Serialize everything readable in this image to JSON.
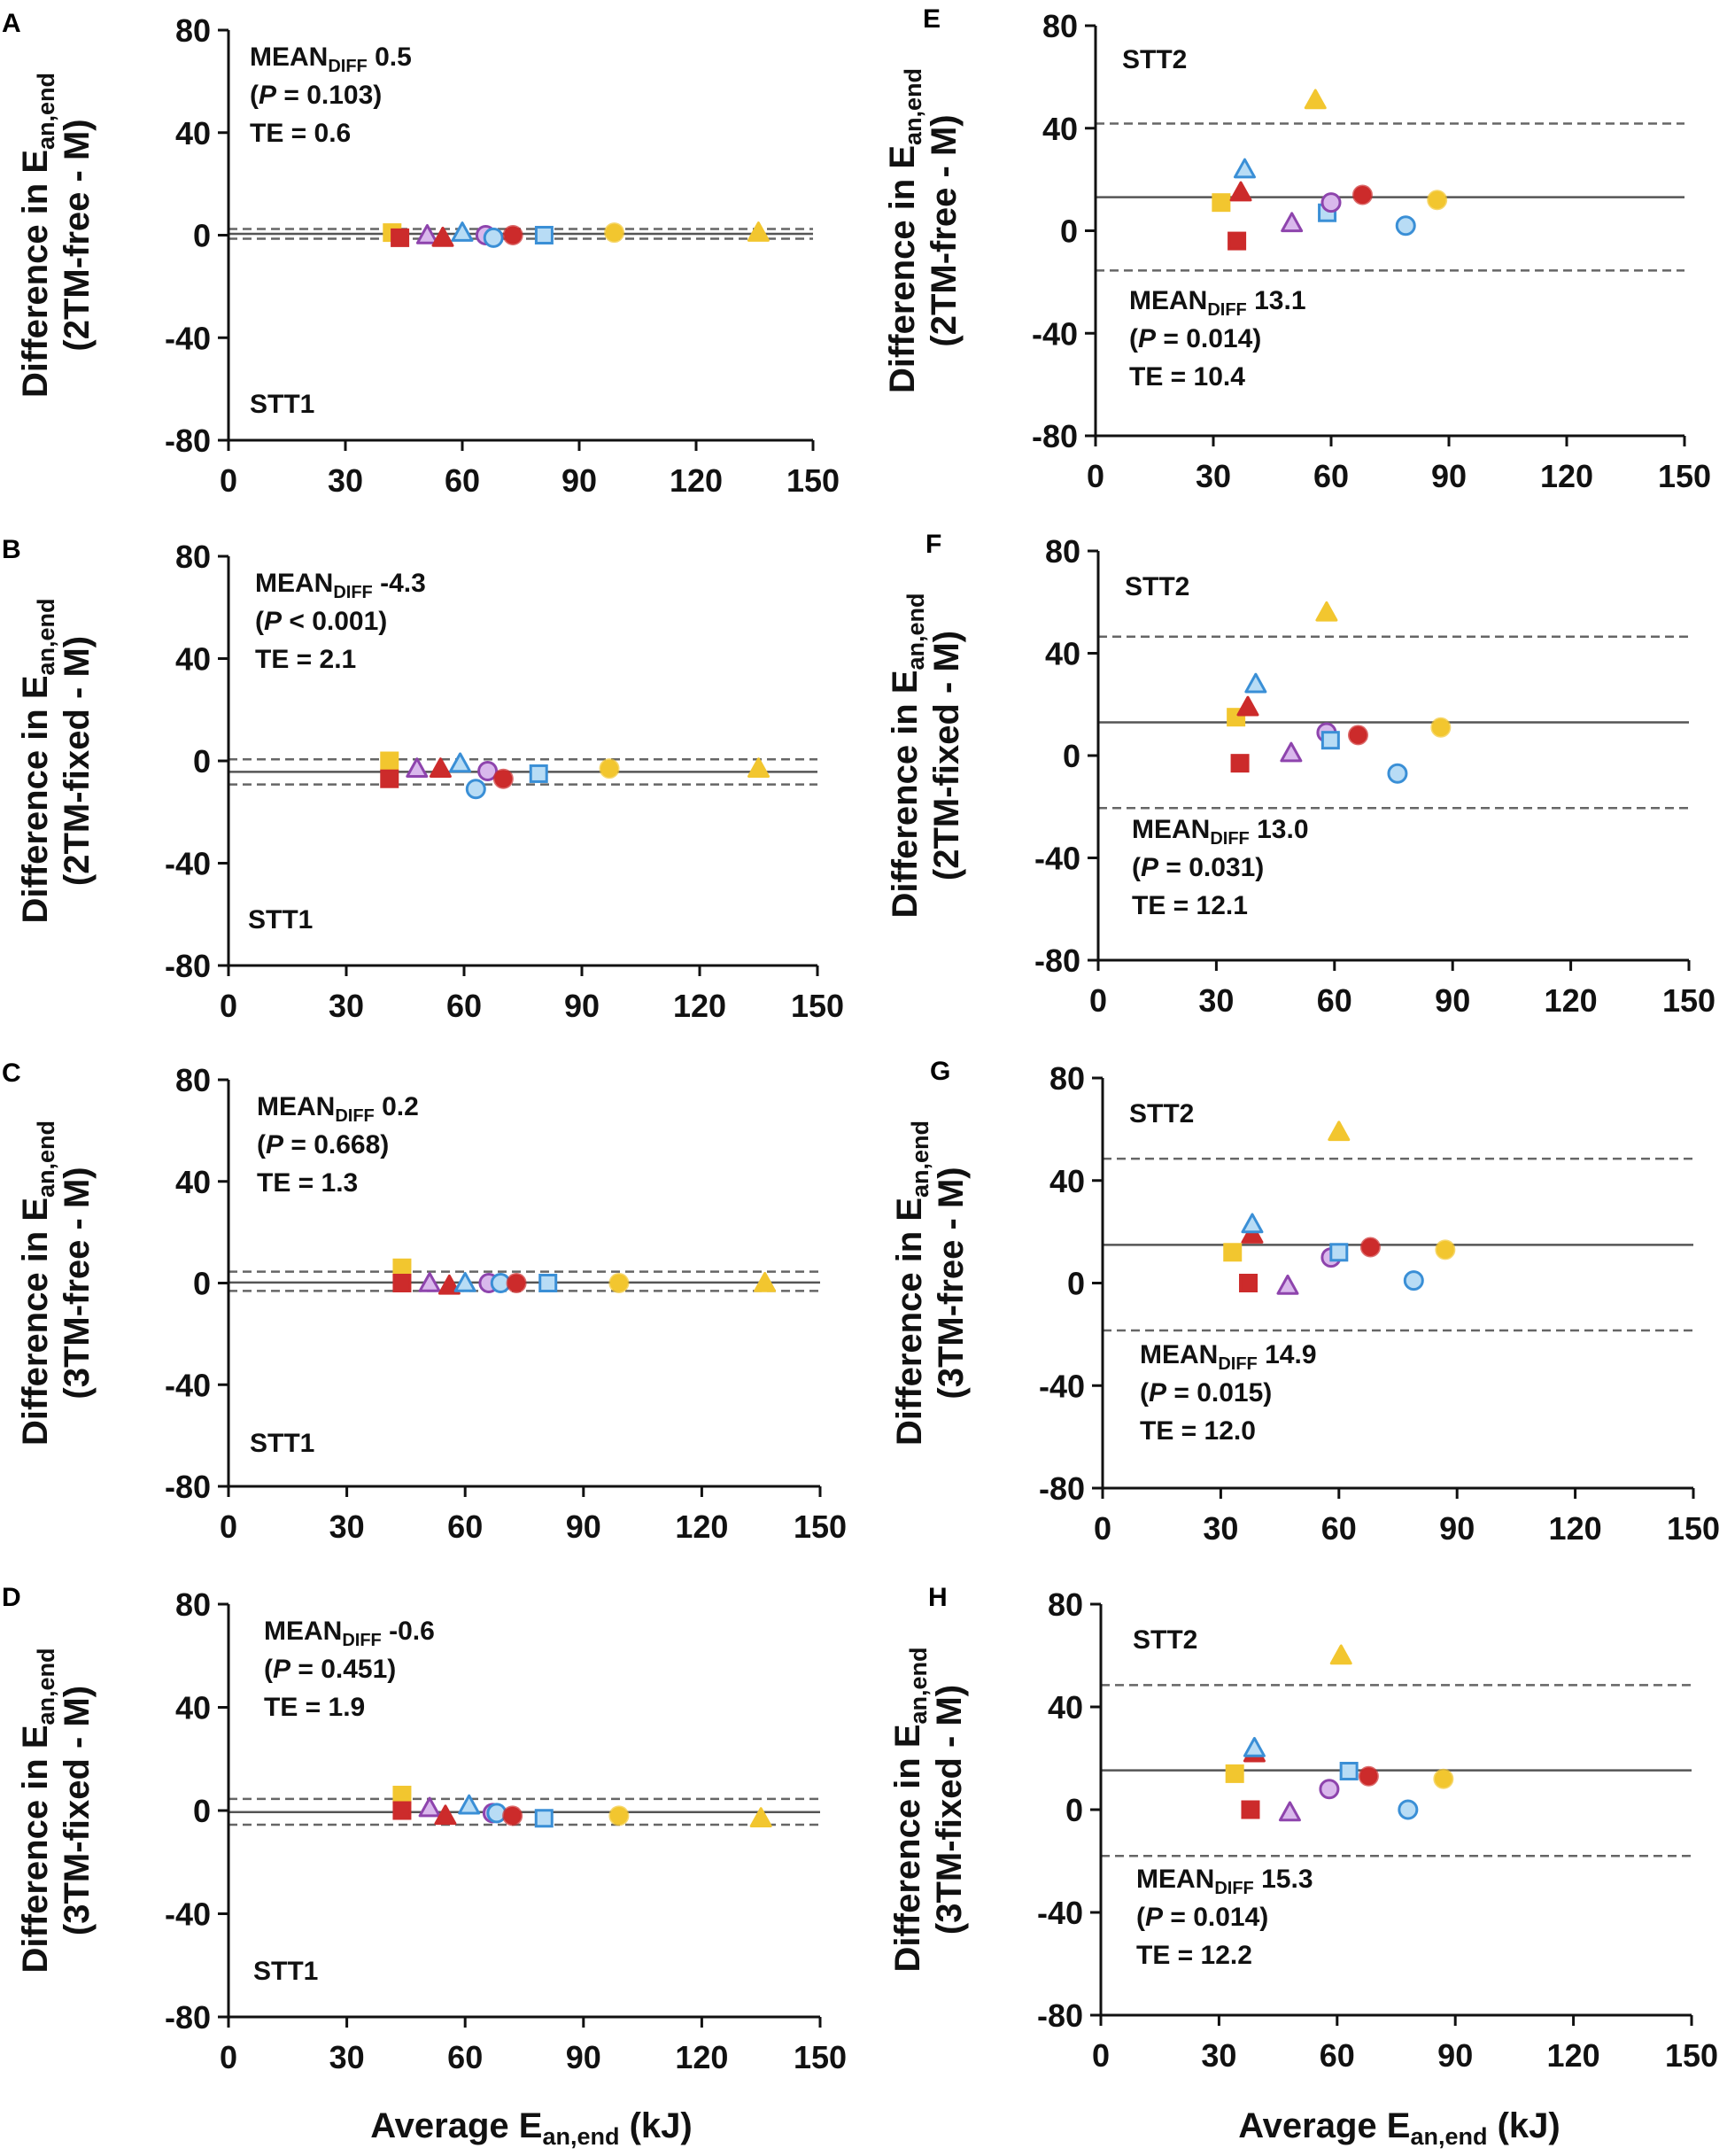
{
  "colors": {
    "yellow": "#f2c62f",
    "red": "#cc2b2b",
    "purple": "#8e44ad",
    "blue": "#3a8fd6",
    "axis": "#111111",
    "mean_line": "#555555",
    "loa_line": "#666666"
  },
  "x_axis_label": {
    "main": "Average E",
    "sub": "an,end",
    "unit": " (kJ)"
  },
  "chart_data": [
    {
      "type": "scatter",
      "panel": "A",
      "session": "STT1",
      "ylabel_line1": {
        "main": "Difference in E",
        "sub": "an,end"
      },
      "ylabel_line2": "(2TM-free - M)",
      "annot": {
        "mean_label": "MEAN",
        "mean_sub": "DIFF",
        "mean_value": " 0.5",
        "p_open": "(",
        "p_italic": "P",
        "p_rest": " = 0.103)",
        "te": "TE = 0.6"
      },
      "xlim": [
        0,
        150
      ],
      "ylim": [
        -80,
        80
      ],
      "xticks": [
        "0",
        "30",
        "60",
        "90",
        "120",
        "150"
      ],
      "yticks": [
        "80",
        "40",
        "0",
        "-40",
        "-80"
      ],
      "mean": 0.5,
      "loa": [
        2.4,
        -1.4
      ],
      "points": [
        {
          "x": 42,
          "y": 1,
          "shape": "square",
          "color": "yellow",
          "fill": "solid"
        },
        {
          "x": 44,
          "y": -1,
          "shape": "square",
          "color": "red",
          "fill": "solid"
        },
        {
          "x": 51,
          "y": 0,
          "shape": "triangle",
          "color": "purple",
          "fill": "light"
        },
        {
          "x": 55,
          "y": -1,
          "shape": "triangle",
          "color": "red",
          "fill": "solid"
        },
        {
          "x": 60,
          "y": 1,
          "shape": "triangle",
          "color": "blue",
          "fill": "light"
        },
        {
          "x": 66,
          "y": 0,
          "shape": "circle",
          "color": "purple",
          "fill": "light"
        },
        {
          "x": 68,
          "y": -1,
          "shape": "circle",
          "color": "blue",
          "fill": "light"
        },
        {
          "x": 73,
          "y": 0,
          "shape": "circle",
          "color": "red",
          "fill": "solid"
        },
        {
          "x": 81,
          "y": 0,
          "shape": "square",
          "color": "blue",
          "fill": "light"
        },
        {
          "x": 99,
          "y": 1,
          "shape": "circle",
          "color": "yellow",
          "fill": "solid"
        },
        {
          "x": 136,
          "y": 1,
          "shape": "triangle",
          "color": "yellow",
          "fill": "solid"
        }
      ]
    },
    {
      "type": "scatter",
      "panel": "B",
      "session": "STT1",
      "ylabel_line1": {
        "main": "Difference in E",
        "sub": "an,end"
      },
      "ylabel_line2": "(2TM-fixed - M)",
      "annot": {
        "mean_label": "MEAN",
        "mean_sub": "DIFF",
        "mean_value": " -4.3",
        "p_open": "(",
        "p_italic": "P",
        "p_rest": " < 0.001)",
        "te": "TE = 2.1"
      },
      "xlim": [
        0,
        150
      ],
      "ylim": [
        -80,
        80
      ],
      "xticks": [
        "0",
        "30",
        "60",
        "90",
        "120",
        "150"
      ],
      "yticks": [
        "80",
        "40",
        "0",
        "-40",
        "-80"
      ],
      "mean": -4.3,
      "loa": [
        0.6,
        -9.2
      ],
      "points": [
        {
          "x": 41,
          "y": 0,
          "shape": "square",
          "color": "yellow",
          "fill": "solid"
        },
        {
          "x": 41,
          "y": -7,
          "shape": "square",
          "color": "red",
          "fill": "solid"
        },
        {
          "x": 48,
          "y": -3,
          "shape": "triangle",
          "color": "purple",
          "fill": "light"
        },
        {
          "x": 54,
          "y": -3,
          "shape": "triangle",
          "color": "red",
          "fill": "solid"
        },
        {
          "x": 59,
          "y": -1,
          "shape": "triangle",
          "color": "blue",
          "fill": "light"
        },
        {
          "x": 63,
          "y": -11,
          "shape": "circle",
          "color": "blue",
          "fill": "light"
        },
        {
          "x": 66,
          "y": -4,
          "shape": "circle",
          "color": "purple",
          "fill": "light"
        },
        {
          "x": 70,
          "y": -7,
          "shape": "circle",
          "color": "red",
          "fill": "solid"
        },
        {
          "x": 79,
          "y": -5,
          "shape": "square",
          "color": "blue",
          "fill": "light"
        },
        {
          "x": 97,
          "y": -3,
          "shape": "circle",
          "color": "yellow",
          "fill": "solid"
        },
        {
          "x": 135,
          "y": -3,
          "shape": "triangle",
          "color": "yellow",
          "fill": "solid"
        }
      ]
    },
    {
      "type": "scatter",
      "panel": "C",
      "session": "STT1",
      "ylabel_line1": {
        "main": "Difference in E",
        "sub": "an,end"
      },
      "ylabel_line2": "(3TM-free - M)",
      "annot": {
        "mean_label": "MEAN",
        "mean_sub": "DIFF",
        "mean_value": " 0.2",
        "p_open": "(",
        "p_italic": "P",
        "p_rest": " = 0.668)",
        "te": "TE = 1.3"
      },
      "xlim": [
        0,
        150
      ],
      "ylim": [
        -80,
        80
      ],
      "xticks": [
        "0",
        "30",
        "60",
        "90",
        "120",
        "150"
      ],
      "yticks": [
        "80",
        "40",
        "0",
        "-40",
        "-80"
      ],
      "mean": 0.2,
      "loa": [
        4.5,
        -3.1
      ],
      "points": [
        {
          "x": 44,
          "y": 6,
          "shape": "square",
          "color": "yellow",
          "fill": "solid"
        },
        {
          "x": 44,
          "y": 0,
          "shape": "square",
          "color": "red",
          "fill": "solid"
        },
        {
          "x": 51,
          "y": 0,
          "shape": "triangle",
          "color": "purple",
          "fill": "light"
        },
        {
          "x": 56,
          "y": -1,
          "shape": "triangle",
          "color": "red",
          "fill": "solid"
        },
        {
          "x": 60,
          "y": 0,
          "shape": "triangle",
          "color": "blue",
          "fill": "light"
        },
        {
          "x": 66,
          "y": 0,
          "shape": "circle",
          "color": "purple",
          "fill": "light"
        },
        {
          "x": 69,
          "y": 0,
          "shape": "circle",
          "color": "blue",
          "fill": "light"
        },
        {
          "x": 73,
          "y": 0,
          "shape": "circle",
          "color": "red",
          "fill": "solid"
        },
        {
          "x": 81,
          "y": 0,
          "shape": "square",
          "color": "blue",
          "fill": "light"
        },
        {
          "x": 99,
          "y": 0,
          "shape": "circle",
          "color": "yellow",
          "fill": "solid"
        },
        {
          "x": 136,
          "y": 0,
          "shape": "triangle",
          "color": "yellow",
          "fill": "solid"
        }
      ]
    },
    {
      "type": "scatter",
      "panel": "D",
      "session": "STT1",
      "ylabel_line1": {
        "main": "Difference in E",
        "sub": "an,end"
      },
      "ylabel_line2": "(3TM-fixed - M)",
      "annot": {
        "mean_label": "MEAN",
        "mean_sub": "DIFF",
        "mean_value": " -0.6",
        "p_open": "(",
        "p_italic": "P",
        "p_rest": " = 0.451)",
        "te": "TE = 1.9"
      },
      "xlim": [
        0,
        150
      ],
      "ylim": [
        -80,
        80
      ],
      "xticks": [
        "0",
        "30",
        "60",
        "90",
        "120",
        "150"
      ],
      "yticks": [
        "80",
        "40",
        "0",
        "-40",
        "-80"
      ],
      "mean": -0.6,
      "loa": [
        4.5,
        -5.5
      ],
      "points": [
        {
          "x": 44,
          "y": 6,
          "shape": "square",
          "color": "yellow",
          "fill": "solid"
        },
        {
          "x": 44,
          "y": 0,
          "shape": "square",
          "color": "red",
          "fill": "solid"
        },
        {
          "x": 51,
          "y": 1,
          "shape": "triangle",
          "color": "purple",
          "fill": "light"
        },
        {
          "x": 55,
          "y": -2,
          "shape": "triangle",
          "color": "red",
          "fill": "solid"
        },
        {
          "x": 61,
          "y": 2,
          "shape": "triangle",
          "color": "blue",
          "fill": "light"
        },
        {
          "x": 67,
          "y": -1,
          "shape": "circle",
          "color": "purple",
          "fill": "light"
        },
        {
          "x": 68,
          "y": -1,
          "shape": "circle",
          "color": "blue",
          "fill": "light"
        },
        {
          "x": 72,
          "y": -2,
          "shape": "circle",
          "color": "red",
          "fill": "solid"
        },
        {
          "x": 80,
          "y": -3,
          "shape": "square",
          "color": "blue",
          "fill": "light"
        },
        {
          "x": 99,
          "y": -2,
          "shape": "circle",
          "color": "yellow",
          "fill": "solid"
        },
        {
          "x": 135,
          "y": -3,
          "shape": "triangle",
          "color": "yellow",
          "fill": "solid"
        }
      ]
    },
    {
      "type": "scatter",
      "panel": "E",
      "session": "STT2",
      "ylabel_line1": {
        "main": "Difference in E",
        "sub": "an,end"
      },
      "ylabel_line2": "(2TM-free - M)",
      "annot": {
        "mean_label": "MEAN",
        "mean_sub": "DIFF",
        "mean_value": " 13.1",
        "p_open": "(",
        "p_italic": "P",
        "p_rest": " = 0.014)",
        "te": "TE = 10.4"
      },
      "xlim": [
        0,
        150
      ],
      "ylim": [
        -80,
        80
      ],
      "xticks": [
        "0",
        "30",
        "60",
        "90",
        "120",
        "150"
      ],
      "yticks": [
        "80",
        "40",
        "0",
        "-40",
        "-80"
      ],
      "mean": 13.1,
      "loa": [
        41.8,
        -15.5
      ],
      "points": [
        {
          "x": 32,
          "y": 11,
          "shape": "square",
          "color": "yellow",
          "fill": "solid"
        },
        {
          "x": 36,
          "y": -4,
          "shape": "square",
          "color": "red",
          "fill": "solid"
        },
        {
          "x": 37,
          "y": 15,
          "shape": "triangle",
          "color": "red",
          "fill": "solid"
        },
        {
          "x": 38,
          "y": 24,
          "shape": "triangle",
          "color": "blue",
          "fill": "light"
        },
        {
          "x": 50,
          "y": 3,
          "shape": "triangle",
          "color": "purple",
          "fill": "light"
        },
        {
          "x": 56,
          "y": 51,
          "shape": "triangle",
          "color": "yellow",
          "fill": "solid"
        },
        {
          "x": 59,
          "y": 7,
          "shape": "square",
          "color": "blue",
          "fill": "light"
        },
        {
          "x": 60,
          "y": 11,
          "shape": "circle",
          "color": "purple",
          "fill": "light"
        },
        {
          "x": 68,
          "y": 14,
          "shape": "circle",
          "color": "red",
          "fill": "solid"
        },
        {
          "x": 79,
          "y": 2,
          "shape": "circle",
          "color": "blue",
          "fill": "light"
        },
        {
          "x": 87,
          "y": 12,
          "shape": "circle",
          "color": "yellow",
          "fill": "solid"
        }
      ]
    },
    {
      "type": "scatter",
      "panel": "F",
      "session": "STT2",
      "ylabel_line1": {
        "main": "Difference in E",
        "sub": "an,end"
      },
      "ylabel_line2": "(2TM-fixed - M)",
      "annot": {
        "mean_label": "MEAN",
        "mean_sub": "DIFF",
        "mean_value": " 13.0",
        "p_open": "(",
        "p_italic": "P",
        "p_rest": " = 0.031)",
        "te": "TE = 12.1"
      },
      "xlim": [
        0,
        150
      ],
      "ylim": [
        -80,
        80
      ],
      "xticks": [
        "0",
        "30",
        "60",
        "90",
        "120",
        "150"
      ],
      "yticks": [
        "80",
        "40",
        "0",
        "-40",
        "-80"
      ],
      "mean": 13.0,
      "loa": [
        46.5,
        -20.5
      ],
      "points": [
        {
          "x": 35,
          "y": 15,
          "shape": "square",
          "color": "yellow",
          "fill": "solid"
        },
        {
          "x": 36,
          "y": -3,
          "shape": "square",
          "color": "red",
          "fill": "solid"
        },
        {
          "x": 38,
          "y": 19,
          "shape": "triangle",
          "color": "red",
          "fill": "solid"
        },
        {
          "x": 40,
          "y": 28,
          "shape": "triangle",
          "color": "blue",
          "fill": "light"
        },
        {
          "x": 49,
          "y": 1,
          "shape": "triangle",
          "color": "purple",
          "fill": "light"
        },
        {
          "x": 58,
          "y": 56,
          "shape": "triangle",
          "color": "yellow",
          "fill": "solid"
        },
        {
          "x": 58,
          "y": 9,
          "shape": "circle",
          "color": "purple",
          "fill": "light"
        },
        {
          "x": 59,
          "y": 6,
          "shape": "square",
          "color": "blue",
          "fill": "light"
        },
        {
          "x": 66,
          "y": 8,
          "shape": "circle",
          "color": "red",
          "fill": "solid"
        },
        {
          "x": 76,
          "y": -7,
          "shape": "circle",
          "color": "blue",
          "fill": "light"
        },
        {
          "x": 87,
          "y": 11,
          "shape": "circle",
          "color": "yellow",
          "fill": "solid"
        }
      ]
    },
    {
      "type": "scatter",
      "panel": "G",
      "session": "STT2",
      "ylabel_line1": {
        "main": "Difference in E",
        "sub": "an,end"
      },
      "ylabel_line2": "(3TM-free - M)",
      "annot": {
        "mean_label": "MEAN",
        "mean_sub": "DIFF",
        "mean_value": " 14.9",
        "p_open": "(",
        "p_italic": "P",
        "p_rest": " = 0.015)",
        "te": "TE = 12.0"
      },
      "xlim": [
        0,
        150
      ],
      "ylim": [
        -80,
        80
      ],
      "xticks": [
        "0",
        "30",
        "60",
        "90",
        "120",
        "150"
      ],
      "yticks": [
        "80",
        "40",
        "0",
        "-40",
        "-80"
      ],
      "mean": 14.9,
      "loa": [
        48.5,
        -18.5
      ],
      "points": [
        {
          "x": 33,
          "y": 12,
          "shape": "square",
          "color": "yellow",
          "fill": "solid"
        },
        {
          "x": 37,
          "y": 0,
          "shape": "square",
          "color": "red",
          "fill": "solid"
        },
        {
          "x": 38,
          "y": 19,
          "shape": "triangle",
          "color": "red",
          "fill": "solid"
        },
        {
          "x": 38,
          "y": 23,
          "shape": "triangle",
          "color": "blue",
          "fill": "light"
        },
        {
          "x": 47,
          "y": -1,
          "shape": "triangle",
          "color": "purple",
          "fill": "light"
        },
        {
          "x": 58,
          "y": 10,
          "shape": "circle",
          "color": "purple",
          "fill": "light"
        },
        {
          "x": 60,
          "y": 59,
          "shape": "triangle",
          "color": "yellow",
          "fill": "solid"
        },
        {
          "x": 60,
          "y": 12,
          "shape": "square",
          "color": "blue",
          "fill": "light"
        },
        {
          "x": 68,
          "y": 14,
          "shape": "circle",
          "color": "red",
          "fill": "solid"
        },
        {
          "x": 79,
          "y": 1,
          "shape": "circle",
          "color": "blue",
          "fill": "light"
        },
        {
          "x": 87,
          "y": 13,
          "shape": "circle",
          "color": "yellow",
          "fill": "solid"
        }
      ]
    },
    {
      "type": "scatter",
      "panel": "H",
      "session": "STT2",
      "ylabel_line1": {
        "main": "Difference in E",
        "sub": "an,end"
      },
      "ylabel_line2": "(3TM-fixed - M)",
      "annot": {
        "mean_label": "MEAN",
        "mean_sub": "DIFF",
        "mean_value": " 15.3",
        "p_open": "(",
        "p_italic": "P",
        "p_rest": " = 0.014)",
        "te": "TE = 12.2"
      },
      "xlim": [
        0,
        150
      ],
      "ylim": [
        -80,
        80
      ],
      "xticks": [
        "0",
        "30",
        "60",
        "90",
        "120",
        "150"
      ],
      "yticks": [
        "80",
        "40",
        "0",
        "-40",
        "-80"
      ],
      "mean": 15.3,
      "loa": [
        48.5,
        -18.0
      ],
      "points": [
        {
          "x": 34,
          "y": 14,
          "shape": "square",
          "color": "yellow",
          "fill": "solid"
        },
        {
          "x": 38,
          "y": 0,
          "shape": "square",
          "color": "red",
          "fill": "solid"
        },
        {
          "x": 39,
          "y": 22,
          "shape": "triangle",
          "color": "red",
          "fill": "solid"
        },
        {
          "x": 39,
          "y": 24,
          "shape": "triangle",
          "color": "blue",
          "fill": "light"
        },
        {
          "x": 48,
          "y": -1,
          "shape": "triangle",
          "color": "purple",
          "fill": "light"
        },
        {
          "x": 58,
          "y": 8,
          "shape": "circle",
          "color": "purple",
          "fill": "light"
        },
        {
          "x": 61,
          "y": 60,
          "shape": "triangle",
          "color": "yellow",
          "fill": "solid"
        },
        {
          "x": 63,
          "y": 15,
          "shape": "square",
          "color": "blue",
          "fill": "light"
        },
        {
          "x": 68,
          "y": 13,
          "shape": "circle",
          "color": "red",
          "fill": "solid"
        },
        {
          "x": 78,
          "y": 0,
          "shape": "circle",
          "color": "blue",
          "fill": "light"
        },
        {
          "x": 87,
          "y": 12,
          "shape": "circle",
          "color": "yellow",
          "fill": "solid"
        }
      ]
    }
  ]
}
